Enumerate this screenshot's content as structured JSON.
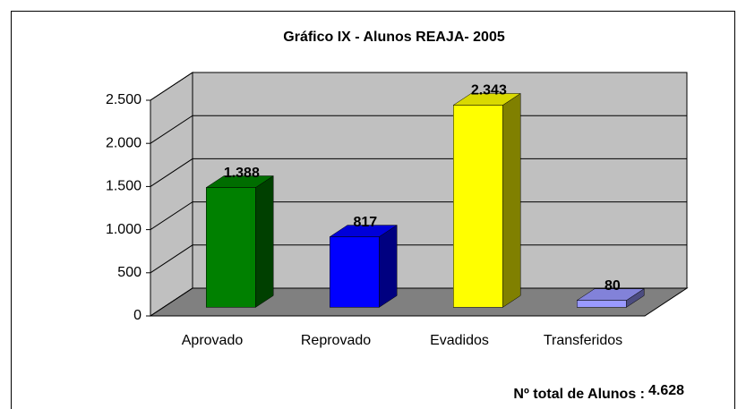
{
  "chart_data": {
    "type": "bar3d",
    "title": "Gráfico IX    - Alunos REAJA- 2005",
    "categories": [
      "Aprovado",
      "Reprovado",
      "Evadidos",
      "Transferidos"
    ],
    "values": [
      1388,
      817,
      2343,
      80
    ],
    "value_labels": [
      "1.388",
      "817",
      "2.343",
      "80"
    ],
    "colors": [
      "#008000",
      "#0000ff",
      "#ffff00",
      "#9999ff"
    ],
    "ylim": [
      0,
      2500
    ],
    "yticks": [
      0,
      500,
      {
        "value": 1000,
        "label": "1.000"
      },
      {
        "value": 1500,
        "label": "1.500"
      },
      {
        "value": 2000,
        "label": "2.000"
      },
      {
        "value": 2500,
        "label": "2.500"
      }
    ],
    "grid": true,
    "footnote": {
      "label": "Nº total de Alunos :",
      "total": "4.628"
    }
  }
}
